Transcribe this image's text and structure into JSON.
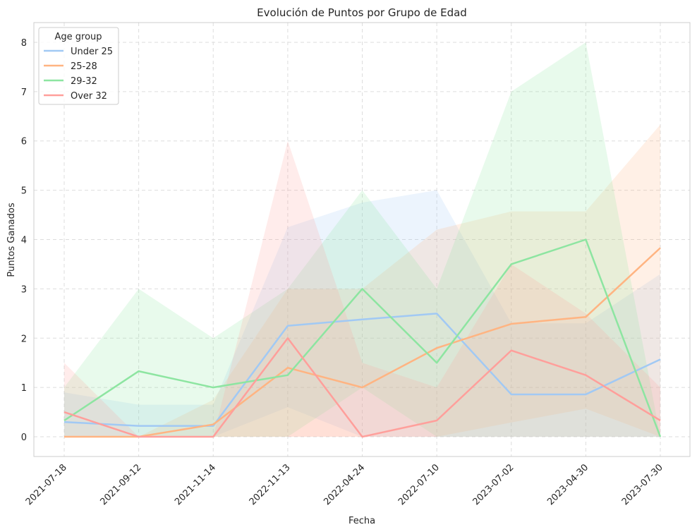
{
  "chart_data": {
    "type": "line",
    "title": "Evolución de Puntos por Grupo de Edad",
    "xlabel": "Fecha",
    "ylabel": "Puntos Ganados",
    "categories": [
      "2021-07-18",
      "2021-09-12",
      "2021-11-14",
      "2022-11-13",
      "2022-04-24",
      "2022-07-10",
      "2023-07-02",
      "2023-04-30",
      "2023-07-30"
    ],
    "ylim": [
      -0.4,
      8.4
    ],
    "yticks": [
      0,
      1,
      2,
      3,
      4,
      5,
      6,
      7,
      8
    ],
    "grid": true,
    "legend": {
      "title": "Age group",
      "placement": "top-left"
    },
    "series": [
      {
        "name": "Under 25",
        "color": "#a1c9f4",
        "values": [
          0.3,
          0.22,
          0.22,
          2.25,
          2.38,
          2.5,
          0.86,
          0.86,
          1.57
        ],
        "band_low": [
          0,
          0,
          0,
          0.6,
          0,
          0,
          0,
          0,
          0
        ],
        "band_high": [
          0.9,
          0.65,
          0.65,
          4.25,
          4.75,
          5.0,
          2.3,
          2.3,
          3.3
        ]
      },
      {
        "name": "25-28",
        "color": "#ffb482",
        "values": [
          0,
          0,
          0.25,
          1.4,
          1.0,
          1.8,
          2.29,
          2.43,
          3.83
        ],
        "band_low": [
          0,
          0,
          0,
          0,
          0,
          0,
          0.29,
          0.57,
          0
        ],
        "band_high": [
          0,
          0,
          0.75,
          3.0,
          3.0,
          4.2,
          4.57,
          4.57,
          6.33
        ]
      },
      {
        "name": "29-32",
        "color": "#8de5a1",
        "values": [
          0.33,
          1.33,
          1.0,
          1.25,
          3.0,
          1.5,
          3.5,
          4.0,
          0
        ],
        "band_low": [
          0,
          0,
          0,
          0,
          1.0,
          0,
          0,
          0,
          0
        ],
        "band_high": [
          1.0,
          3.0,
          2.0,
          3.0,
          5.0,
          3.0,
          7.0,
          8.0,
          0
        ]
      },
      {
        "name": "Over 32",
        "color": "#ff9f9b",
        "values": [
          0.5,
          0,
          0,
          2.0,
          0,
          0.33,
          1.75,
          1.25,
          0.33
        ],
        "band_low": [
          0,
          0,
          0,
          0,
          0,
          0,
          0,
          0,
          0
        ],
        "band_high": [
          1.5,
          0,
          0,
          6.0,
          1.5,
          1.0,
          3.5,
          2.5,
          1.0
        ]
      }
    ]
  }
}
